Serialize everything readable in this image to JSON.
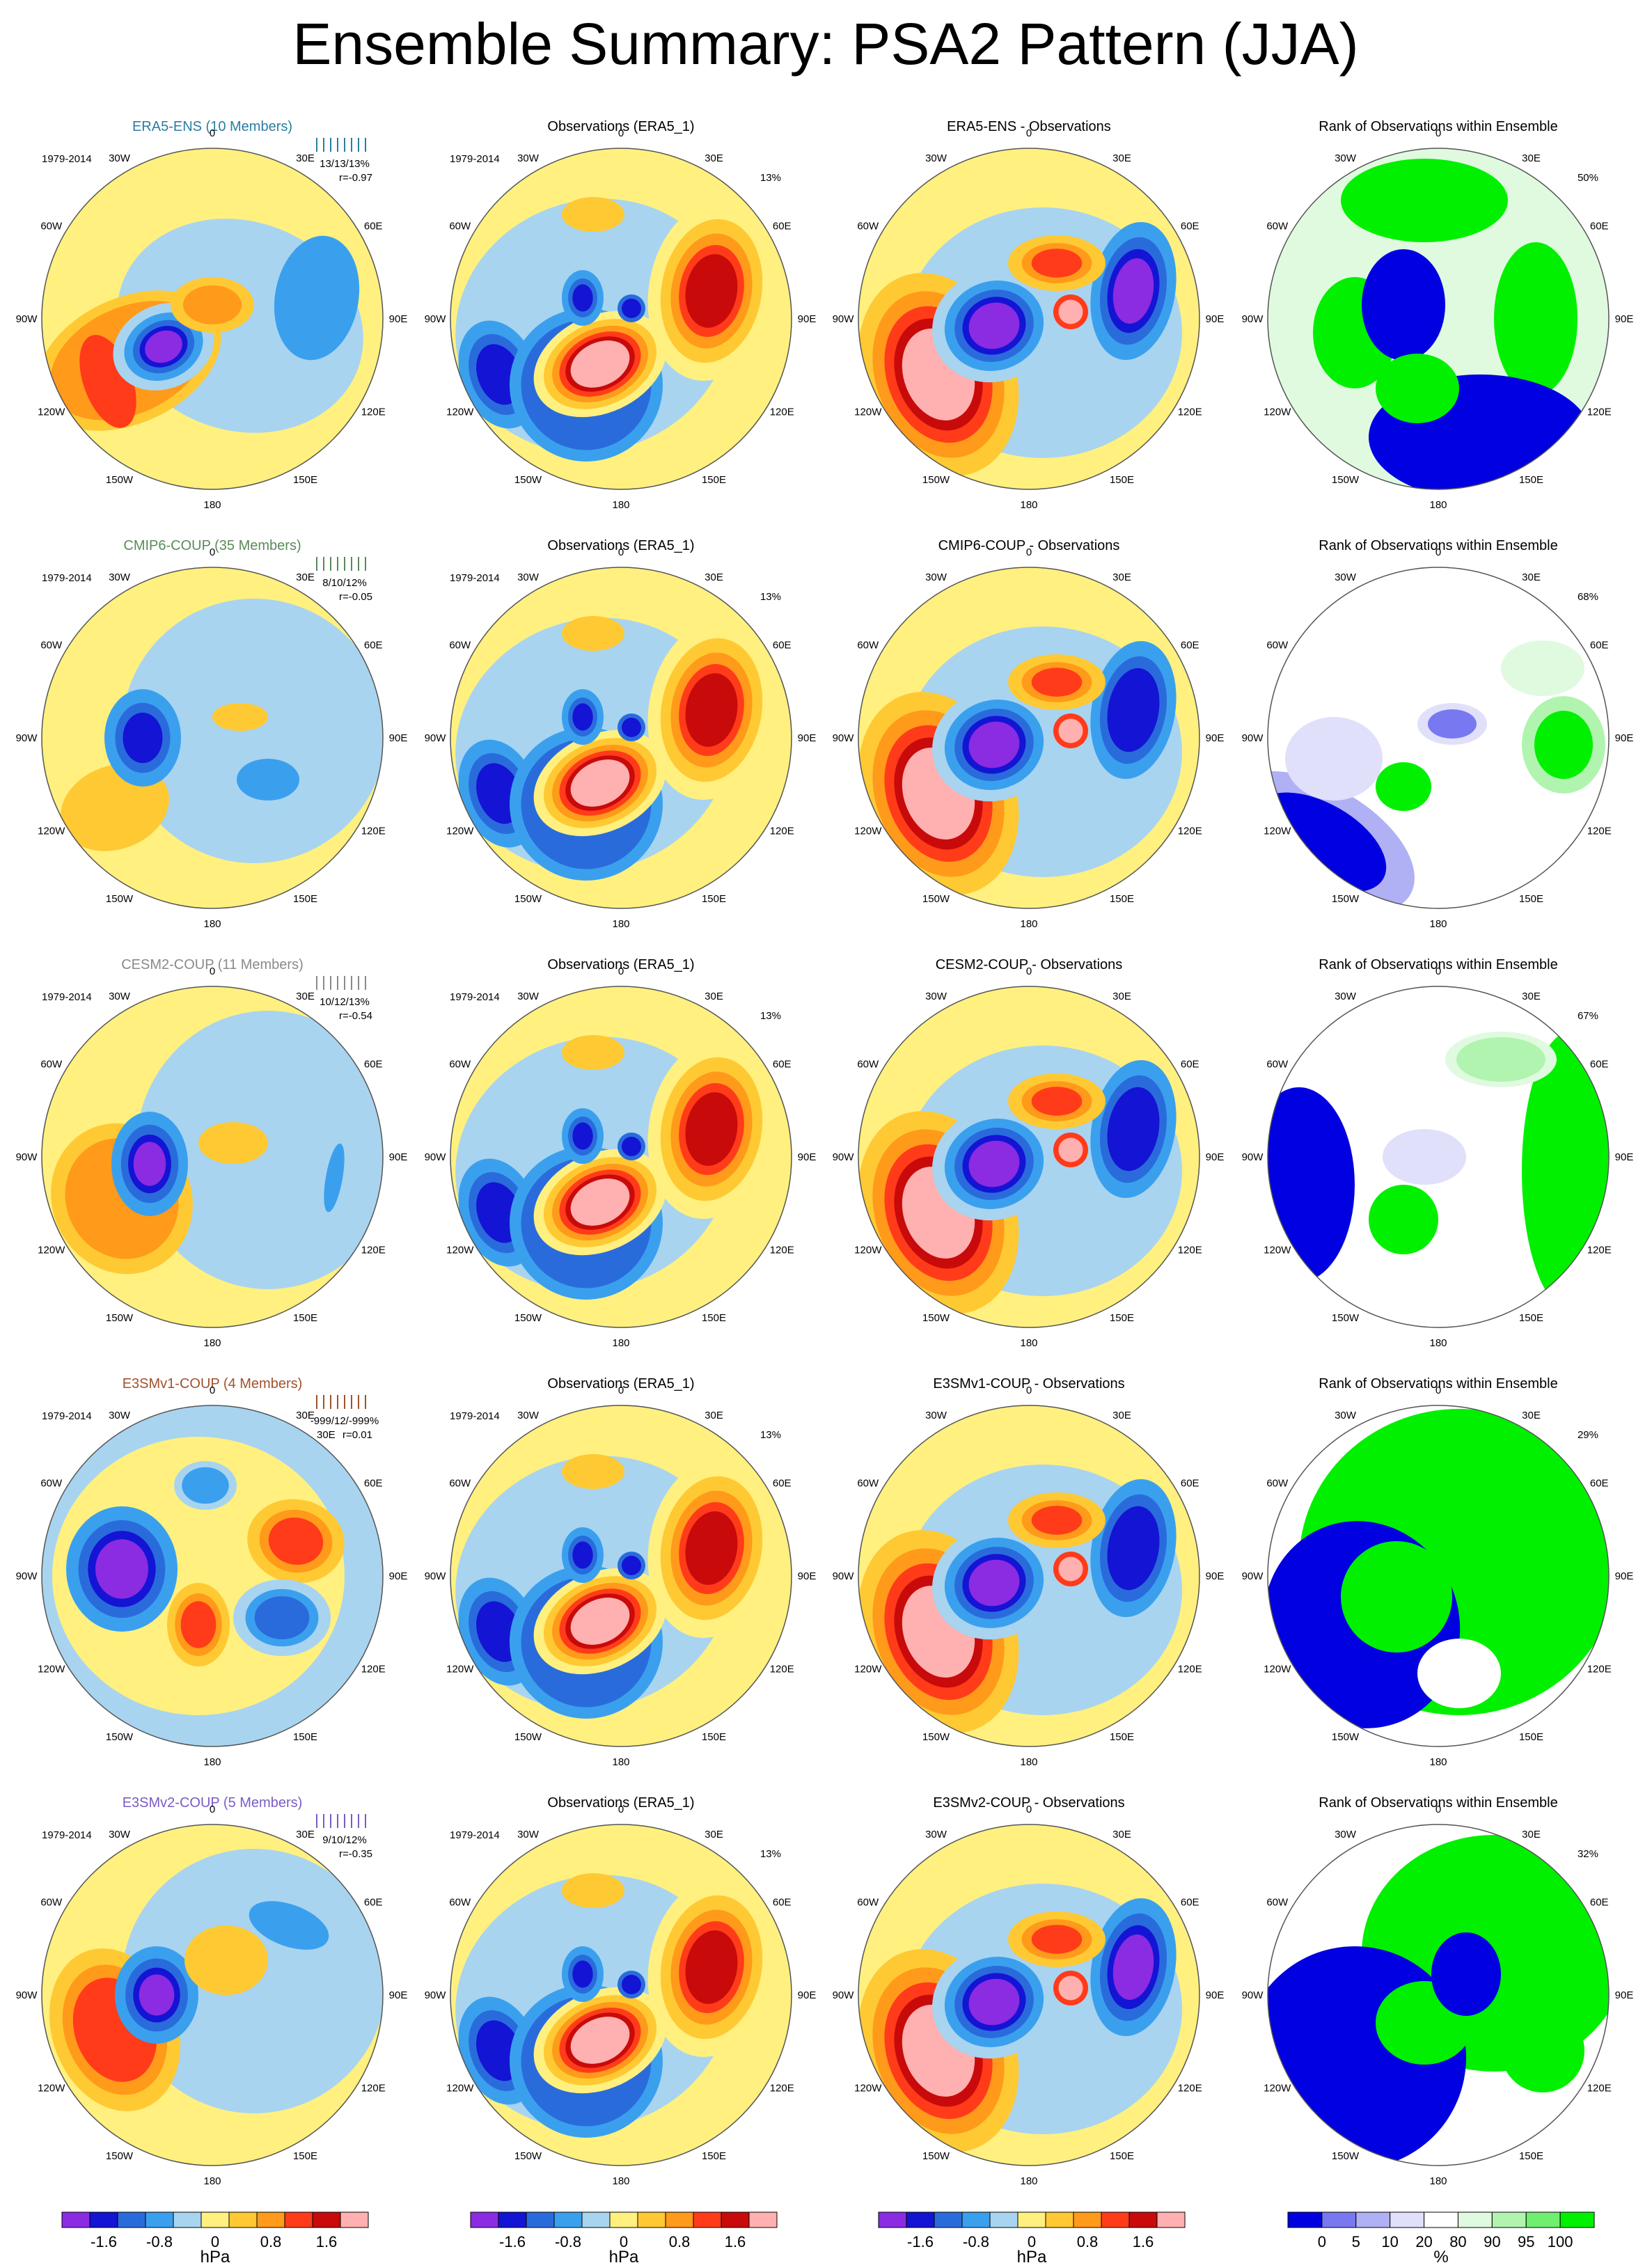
{
  "title": "Ensemble Summary: PSA2 Pattern (JJA)",
  "period": "1979-2014",
  "lon_labels": [
    "0",
    "30E",
    "60E",
    "90E",
    "120E",
    "150E",
    "180",
    "150W",
    "120W",
    "90W",
    "60W",
    "30W"
  ],
  "rows": [
    {
      "model": "ERA5-ENS (10 Members)",
      "color": "#2a7da3",
      "stats": "13/13/13%",
      "corr": "r=-0.97",
      "corr_prefix": "",
      "diff_title": "ERA5-ENS - Observations",
      "rank_pct": "50%",
      "obs_pct": "13%",
      "mode": "era5"
    },
    {
      "model": "CMIP6-COUP (35 Members)",
      "color": "#5a8a5a",
      "stats": "8/10/12%",
      "corr": "r=-0.05",
      "corr_prefix": "",
      "diff_title": "CMIP6-COUP - Observations",
      "rank_pct": "68%",
      "obs_pct": "13%",
      "mode": "cmip6"
    },
    {
      "model": "CESM2-COUP (11 Members)",
      "color": "#8a8a8a",
      "stats": "10/12/13%",
      "corr": "r=-0.54",
      "corr_prefix": "",
      "diff_title": "CESM2-COUP - Observations",
      "rank_pct": "67%",
      "obs_pct": "13%",
      "mode": "cesm2"
    },
    {
      "model": "E3SMv1-COUP (4 Members)",
      "color": "#a0522d",
      "stats": "-999/12/-999%",
      "corr": "r=0.01",
      "corr_prefix": "30E",
      "diff_title": "E3SMv1-COUP - Observations",
      "rank_pct": "29%",
      "obs_pct": "13%",
      "mode": "e3smv1"
    },
    {
      "model": "E3SMv2-COUP (5 Members)",
      "color": "#7b5cc4",
      "stats": "9/10/12%",
      "corr": "r=-0.35",
      "corr_prefix": "",
      "diff_title": "E3SMv2-COUP - Observations",
      "rank_pct": "32%",
      "obs_pct": "13%",
      "mode": "e3smv2"
    }
  ],
  "obs_title": "Observations (ERA5_1)",
  "rank_title": "Rank of Observations within Ensemble",
  "colorbar_hpa": {
    "unit": "hPa",
    "ticks": [
      "-1.6",
      "-0.8",
      "0",
      "0.8",
      "1.6"
    ],
    "colors": [
      "#8b2be2",
      "#1414d4",
      "#2a6bdc",
      "#3aa0ee",
      "#a8d4f0",
      "#fff080",
      "#ffc933",
      "#ff9a1a",
      "#ff3b1a",
      "#c80a0a",
      "#ffb0b0"
    ]
  },
  "colorbar_rank": {
    "unit": "%",
    "ticks": [
      "0",
      "5",
      "10",
      "20",
      "80",
      "90",
      "95",
      "100"
    ],
    "colors": [
      "#0000e0",
      "#7878f0",
      "#b0b0f4",
      "#e0e0fb",
      "#ffffff",
      "#e0fae0",
      "#b0f4b0",
      "#70ee70",
      "#00f000"
    ]
  },
  "chart_data": {
    "type": "heatmap",
    "title": "Ensemble Summary: PSA2 Pattern (JJA)",
    "projection": "south polar stereographic",
    "panels_per_row": [
      "ensemble mean",
      "Observations (ERA5_1)",
      "ensemble - observations",
      "Rank of Observations within Ensemble"
    ],
    "rows": [
      "ERA5-ENS (10 Members)",
      "CMIP6-COUP (35 Members)",
      "CESM2-COUP (11 Members)",
      "E3SMv1-COUP (4 Members)",
      "E3SMv2-COUP (5 Members)"
    ],
    "field_levels_hPa": [
      -2.0,
      -1.6,
      -1.2,
      -0.8,
      -0.4,
      0,
      0.4,
      0.8,
      1.2,
      1.6,
      2.0
    ],
    "rank_levels_pct": [
      0,
      5,
      10,
      20,
      80,
      90,
      95,
      100
    ],
    "stats": [
      "13/13/13%",
      "8/10/12%",
      "10/12/13%",
      "-999/12/-999%",
      "9/10/12%"
    ],
    "correlations": [
      -0.97,
      -0.05,
      -0.54,
      0.01,
      -0.35
    ],
    "rank_summary_pct": [
      50,
      68,
      67,
      29,
      32
    ],
    "obs_summary_pct": [
      13,
      13,
      13,
      13,
      13
    ],
    "colorbar_unit_field": "hPa",
    "colorbar_unit_rank": "%"
  }
}
